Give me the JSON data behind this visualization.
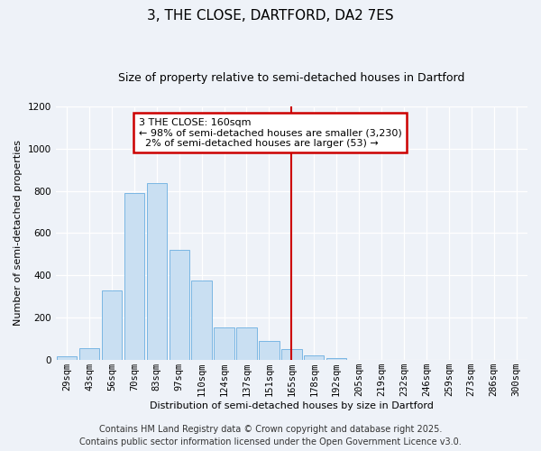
{
  "title": "3, THE CLOSE, DARTFORD, DA2 7ES",
  "subtitle": "Size of property relative to semi-detached houses in Dartford",
  "xlabel": "Distribution of semi-detached houses by size in Dartford",
  "ylabel": "Number of semi-detached properties",
  "categories": [
    "29sqm",
    "43sqm",
    "56sqm",
    "70sqm",
    "83sqm",
    "97sqm",
    "110sqm",
    "124sqm",
    "137sqm",
    "151sqm",
    "165sqm",
    "178sqm",
    "192sqm",
    "205sqm",
    "219sqm",
    "232sqm",
    "246sqm",
    "259sqm",
    "273sqm",
    "286sqm",
    "300sqm"
  ],
  "values": [
    18,
    55,
    330,
    790,
    835,
    520,
    375,
    155,
    155,
    90,
    50,
    20,
    10,
    0,
    0,
    0,
    0,
    0,
    0,
    0,
    0
  ],
  "bar_color": "#c9dff2",
  "bar_edge_color": "#6aaee0",
  "vline_x": 10,
  "annotation_title": "3 THE CLOSE: 160sqm",
  "annotation_line2": "← 98% of semi-detached houses are smaller (3,230)",
  "annotation_line3": "  2% of semi-detached houses are larger (53) →",
  "annotation_box_color": "#ffffff",
  "annotation_border_color": "#cc0000",
  "vline_color": "#cc0000",
  "ylim": [
    0,
    1200
  ],
  "yticks": [
    0,
    200,
    400,
    600,
    800,
    1000,
    1200
  ],
  "background_color": "#eef2f8",
  "plot_background": "#eef2f8",
  "footer_line1": "Contains HM Land Registry data © Crown copyright and database right 2025.",
  "footer_line2": "Contains public sector information licensed under the Open Government Licence v3.0.",
  "title_fontsize": 11,
  "subtitle_fontsize": 9,
  "axis_label_fontsize": 8,
  "tick_fontsize": 7.5,
  "footer_fontsize": 7
}
